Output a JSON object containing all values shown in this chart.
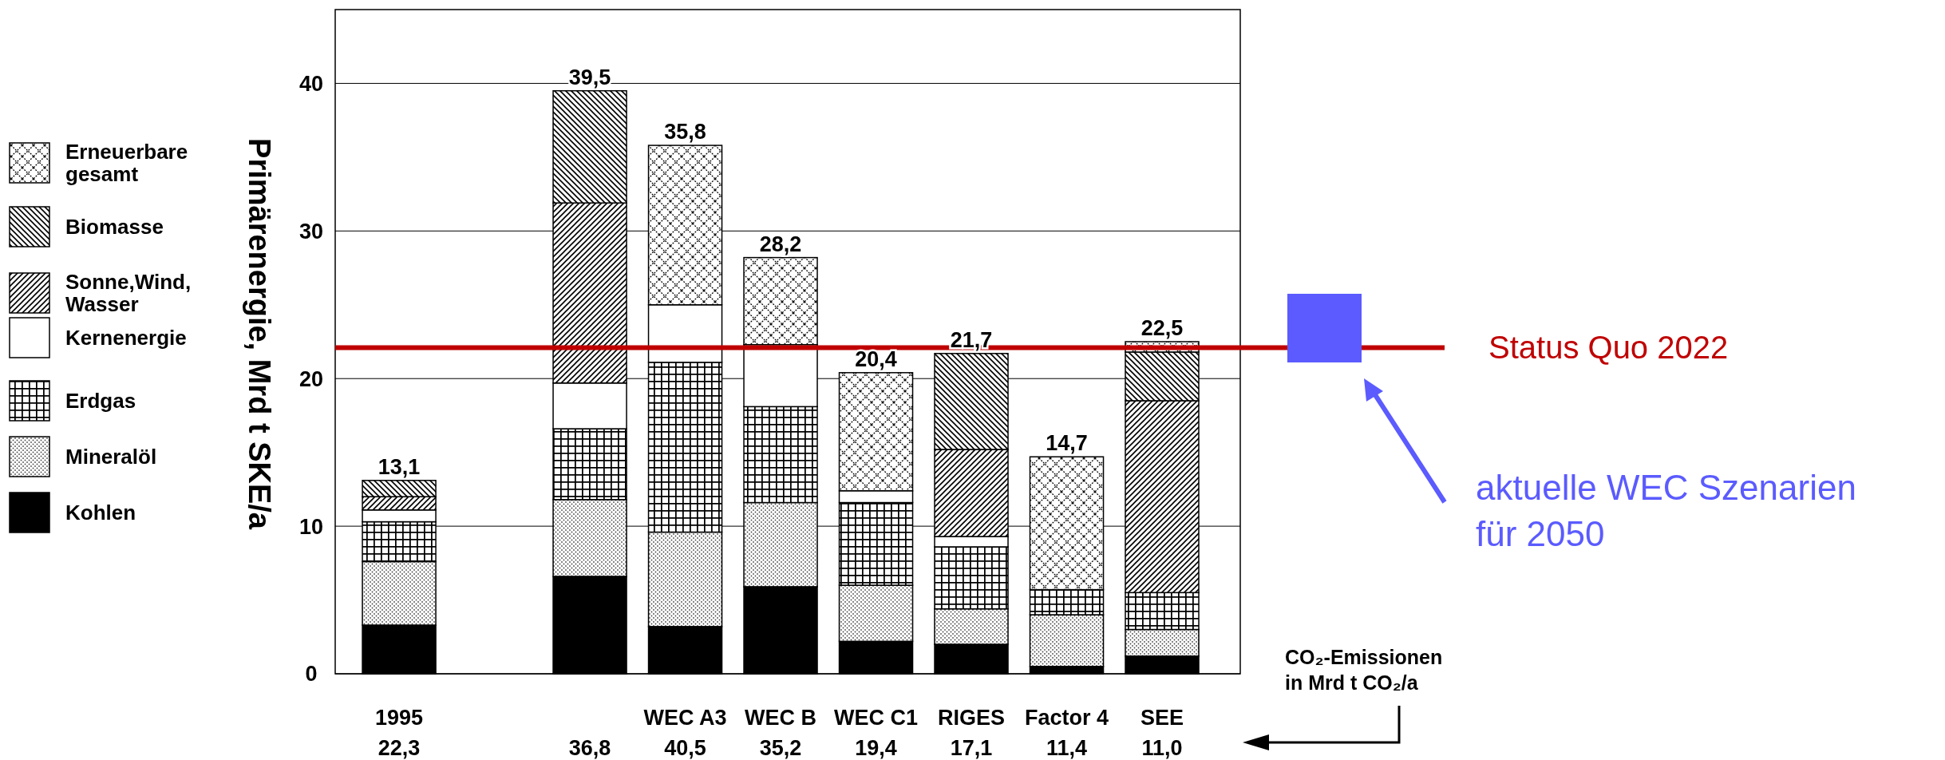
{
  "chart_data": {
    "type": "bar",
    "stacked": true,
    "ylabel": "Primärenergie, Mrd t SKE/a",
    "categories": [
      "1995",
      null,
      null,
      "WEC A3",
      "WEC B",
      "WEC C1",
      "RIGES",
      "Factor 4",
      "SEE"
    ],
    "series": [
      {
        "name": "Kohlen",
        "color": "#000000",
        "values": [
          3.3,
          null,
          6.6,
          3.2,
          5.9,
          2.2,
          2.0,
          0.5,
          1.2
        ]
      },
      {
        "name": "Mineralöl",
        "color": "#000000",
        "values": [
          4.3,
          null,
          5.2,
          6.4,
          5.7,
          3.8,
          2.4,
          3.5,
          1.8
        ]
      },
      {
        "name": "Erdgas",
        "color": "#000000",
        "values": [
          2.7,
          null,
          4.8,
          11.5,
          6.5,
          5.6,
          4.2,
          1.7,
          2.5
        ]
      },
      {
        "name": "Kernenergie",
        "color": "#ffffff",
        "values": [
          0.8,
          null,
          3.1,
          3.9,
          4.2,
          0.8,
          0.7,
          null,
          null
        ]
      },
      {
        "name": "Sonne,Wind, Wasser",
        "color": "#000000",
        "values": [
          0.9,
          null,
          12.2,
          null,
          null,
          null,
          5.9,
          null,
          13.0
        ]
      },
      {
        "name": "Biomasse",
        "color": "#000000",
        "values": [
          1.1,
          null,
          7.6,
          null,
          null,
          null,
          6.5,
          null,
          3.3
        ]
      },
      {
        "name": "Erneuerbare gesamt",
        "color": "#000000",
        "values": [
          null,
          null,
          null,
          10.8,
          5.9,
          8.0,
          null,
          9.0,
          0.7
        ]
      }
    ],
    "totals": [
      "13,1",
      null,
      "39,5",
      "35,8",
      "28,2",
      "20,4",
      "21,7",
      "14,7",
      "22,5"
    ],
    "ylim": [
      0,
      45
    ],
    "yticks": [
      0,
      10,
      20,
      30,
      40
    ],
    "grid": "y",
    "legend": "left",
    "ref_lines": [
      {
        "axis": "y",
        "value": 22.1,
        "label": "Status Quo 2022",
        "color": "#c00000"
      }
    ],
    "annotations": [
      "aktuelle WEC Szenarien für 2050",
      "CO₂-Emissionen in Mrd t CO₂/a",
      "22,3",
      "36,8",
      "40,5",
      "35,2",
      "19,4",
      "17,1",
      "11,4",
      "11,0"
    ]
  }
}
